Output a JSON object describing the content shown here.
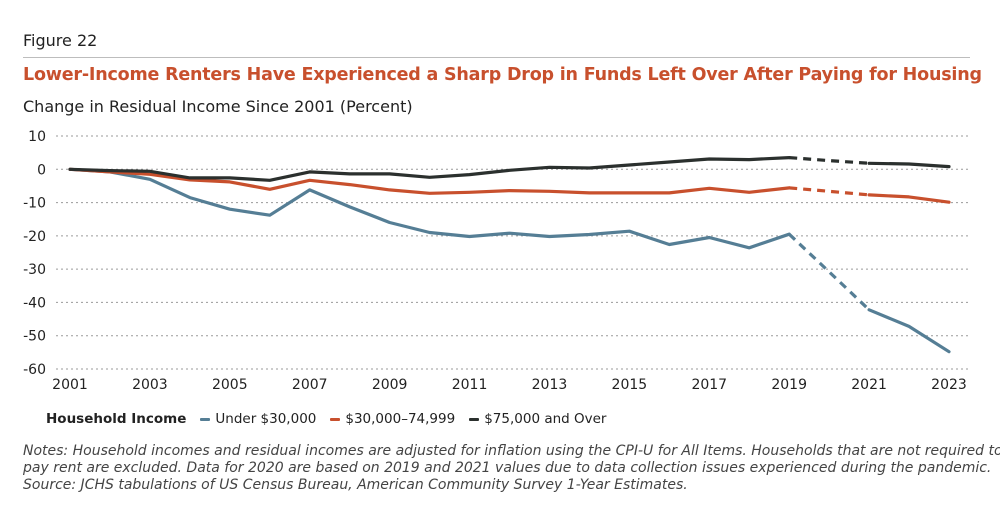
{
  "figure_label": "Figure 22",
  "title": "Lower-Income Renters Have Experienced a Sharp Drop in Funds Left Over After Paying for Housing",
  "subtitle": "Change in Residual Income Since 2001 (Percent)",
  "legend": {
    "title": "Household Income",
    "items": [
      "Under $30,000",
      "$30,000–74,999",
      "$75,000 and Over"
    ]
  },
  "notes": {
    "line1": "Notes: Household incomes and residual incomes are adjusted for inflation using the CPI-U for All Items. Households that are not required to",
    "line2": "pay rent are excluded. Data for 2020 are based on 2019 and 2021 values due to data collection issues experienced during the pandemic.",
    "line3": "Source: JCHS tabulations of US Census Bureau, American Community Survey 1-Year Estimates."
  },
  "colors": {
    "under_30k": "#557e95",
    "mid": "#c8502d",
    "over_75k": "#2b302e",
    "title": "#c8502d"
  },
  "chart_data": {
    "type": "line",
    "title": "Lower-Income Renters Have Experienced a Sharp Drop in Funds Left Over After Paying for Housing",
    "ylabel": "Change in Residual Income Since 2001 (Percent)",
    "xlabel": "",
    "ylim": [
      -60,
      10
    ],
    "xlim": [
      2001,
      2023
    ],
    "y_ticks": [
      10,
      0,
      -10,
      -20,
      -30,
      -40,
      -50,
      -60
    ],
    "y_tick_labels": [
      "10",
      "0",
      "-10",
      "-20",
      "-30",
      "-40",
      "-50",
      "-60"
    ],
    "x_ticks": [
      2001,
      2003,
      2005,
      2007,
      2009,
      2011,
      2013,
      2015,
      2017,
      2019,
      2021,
      2023
    ],
    "x_tick_labels": [
      "2001",
      "2003",
      "2005",
      "2007",
      "2009",
      "2011",
      "2013",
      "2015",
      "2017",
      "2019",
      "2021",
      "2023"
    ],
    "grid": "horizontal dotted",
    "legend_position": "bottom",
    "dashed_segment_note": "2019–2021 segment dashed (2020 interpolated)",
    "x": [
      2001,
      2002,
      2003,
      2004,
      2005,
      2006,
      2007,
      2008,
      2009,
      2010,
      2011,
      2012,
      2013,
      2014,
      2015,
      2016,
      2017,
      2018,
      2019,
      2020,
      2021,
      2022,
      2023
    ],
    "series": [
      {
        "name": "Under $30,000",
        "color": "#557e95",
        "values": [
          0,
          -0.8,
          -3,
          -8.5,
          -12,
          -13.8,
          -6.2,
          -11.3,
          -16,
          -19,
          -20.2,
          -19.2,
          -20.2,
          -19.6,
          -18.6,
          -22.6,
          -20.5,
          -23.6,
          -19.5,
          -30.8,
          -42.2,
          -47.2,
          -54.8
        ]
      },
      {
        "name": "$30,000–74,999",
        "color": "#c8502d",
        "values": [
          0,
          -0.8,
          -1.5,
          -3.2,
          -3.8,
          -6,
          -3.3,
          -4.6,
          -6.2,
          -7.2,
          -6.9,
          -6.4,
          -6.6,
          -7.1,
          -7.1,
          -7.1,
          -5.7,
          -6.9,
          -5.6,
          -6.6,
          -7.7,
          -8.3,
          -9.9
        ]
      },
      {
        "name": "$75,000 and Over",
        "color": "#2b302e",
        "values": [
          0,
          -0.4,
          -0.6,
          -2.6,
          -2.6,
          -3.3,
          -0.8,
          -1.4,
          -1.4,
          -2.4,
          -1.6,
          -0.3,
          0.6,
          0.4,
          1.3,
          2.2,
          3.1,
          2.9,
          3.5,
          2.6,
          1.8,
          1.6,
          0.8
        ]
      }
    ]
  }
}
